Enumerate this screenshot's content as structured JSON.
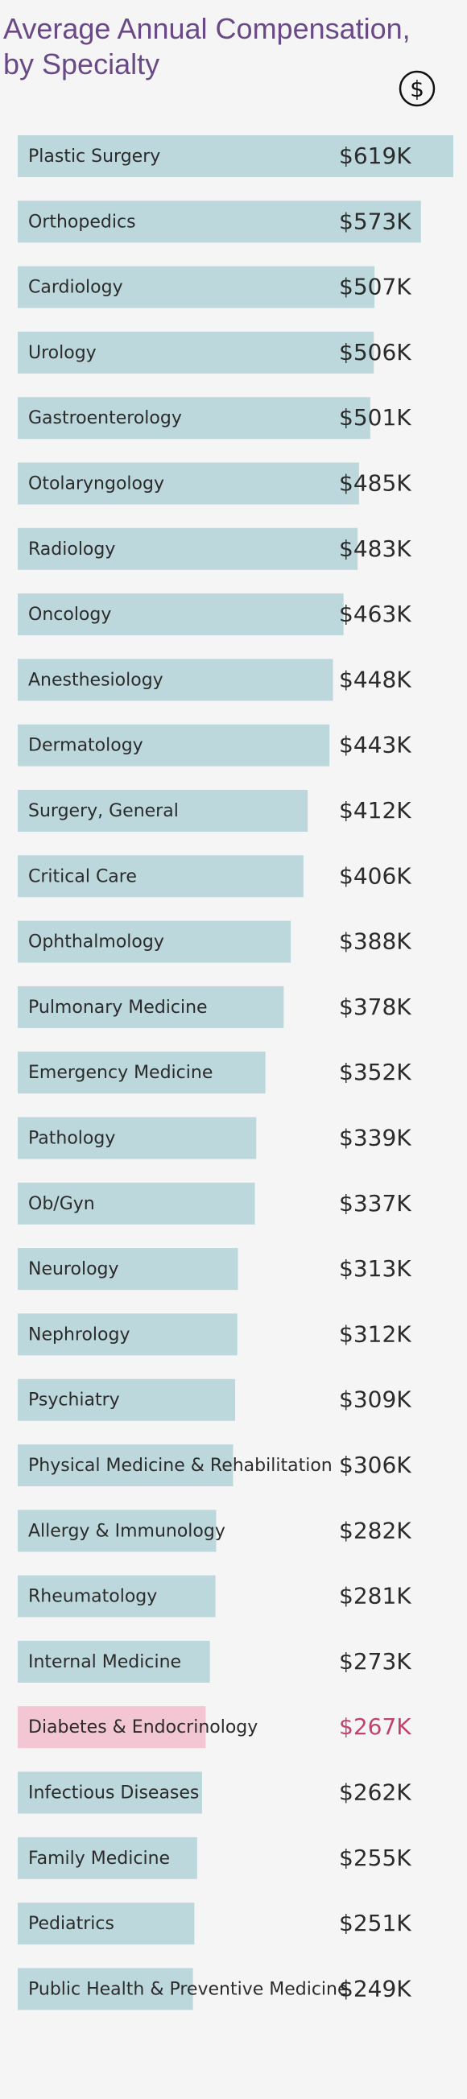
{
  "chart_data": {
    "type": "bar",
    "orientation": "horizontal",
    "title": "Average Annual Compensation, by Specialty",
    "icon": "$",
    "categories": [
      "Plastic Surgery",
      "Orthopedics",
      "Cardiology",
      "Urology",
      "Gastroenterology",
      "Otolaryngology",
      "Radiology",
      "Oncology",
      "Anesthesiology",
      "Dermatology",
      "Surgery, General",
      "Critical Care",
      "Ophthalmology",
      "Pulmonary Medicine",
      "Emergency Medicine",
      "Pathology",
      "Ob/Gyn",
      "Neurology",
      "Nephrology",
      "Psychiatry",
      "Physical Medicine & Rehabilitation",
      "Allergy & Immunology",
      "Rheumatology",
      "Internal Medicine",
      "Diabetes & Endocrinology",
      "Infectious Diseases",
      "Family Medicine",
      "Pediatrics",
      "Public Health & Preventive Medicine"
    ],
    "values": [
      619,
      573,
      507,
      506,
      501,
      485,
      483,
      463,
      448,
      443,
      412,
      406,
      388,
      378,
      352,
      339,
      337,
      313,
      312,
      309,
      306,
      282,
      281,
      273,
      267,
      262,
      255,
      251,
      249
    ],
    "value_labels": [
      "$619K",
      "$573K",
      "$507K",
      "$506K",
      "$501K",
      "$485K",
      "$483K",
      "$463K",
      "$448K",
      "$443K",
      "$412K",
      "$406K",
      "$388K",
      "$378K",
      "$352K",
      "$339K",
      "$337K",
      "$313K",
      "$312K",
      "$309K",
      "$306K",
      "$282K",
      "$281K",
      "$273K",
      "$267K",
      "$262K",
      "$255K",
      "$251K",
      "$249K"
    ],
    "colors": [
      "#bdd8dc",
      "#bdd8dc",
      "#bdd8dc",
      "#bdd8dc",
      "#bdd8dc",
      "#bdd8dc",
      "#bdd8dc",
      "#bdd8dc",
      "#bdd8dc",
      "#bdd8dc",
      "#bdd8dc",
      "#bdd8dc",
      "#bdd8dc",
      "#bdd8dc",
      "#bdd8dc",
      "#bdd8dc",
      "#bdd8dc",
      "#bdd8dc",
      "#bdd8dc",
      "#bdd8dc",
      "#bdd8dc",
      "#bdd8dc",
      "#bdd8dc",
      "#bdd8dc",
      "#f2c6d3",
      "#bdd8dc",
      "#bdd8dc",
      "#bdd8dc",
      "#bdd8dc"
    ],
    "label_colors": [
      "#2b2b2b",
      "#2b2b2b",
      "#2b2b2b",
      "#2b2b2b",
      "#2b2b2b",
      "#2b2b2b",
      "#2b2b2b",
      "#2b2b2b",
      "#2b2b2b",
      "#2b2b2b",
      "#2b2b2b",
      "#2b2b2b",
      "#2b2b2b",
      "#2b2b2b",
      "#2b2b2b",
      "#2b2b2b",
      "#2b2b2b",
      "#2b2b2b",
      "#2b2b2b",
      "#2b2b2b",
      "#2b2b2b",
      "#2b2b2b",
      "#2b2b2b",
      "#2b2b2b",
      "#c0436b",
      "#2b2b2b",
      "#2b2b2b",
      "#2b2b2b",
      "#2b2b2b"
    ]
  }
}
